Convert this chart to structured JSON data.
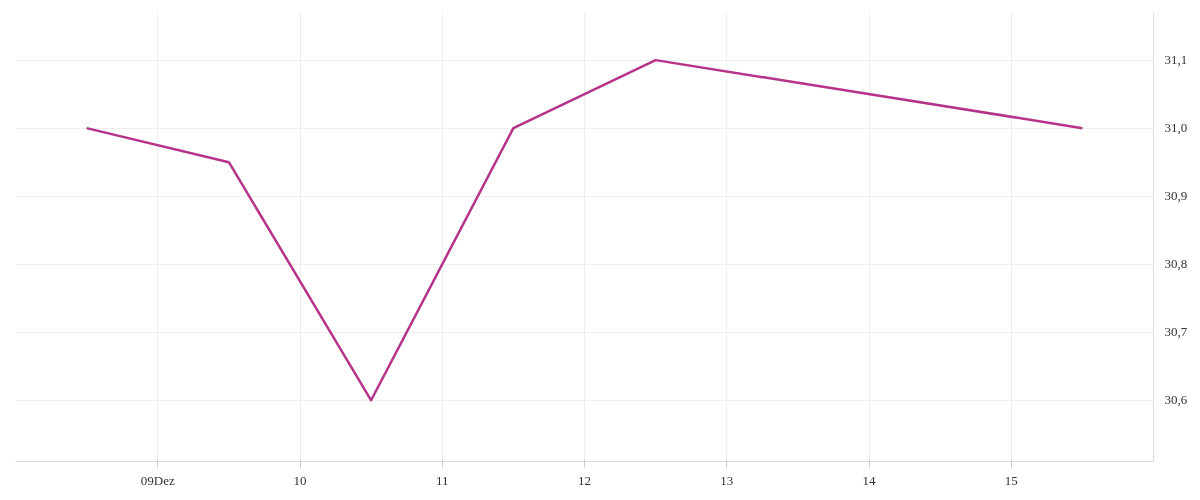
{
  "chart_data": {
    "type": "line",
    "x": [
      8.5,
      9.5,
      10.5,
      11.5,
      12.5,
      15.5
    ],
    "series": [
      {
        "color": "#b5338a",
        "values": [
          31.0,
          30.95,
          30.6,
          31.0,
          31.1,
          31.0
        ]
      }
    ],
    "xlim": [
      8.0,
      16.0
    ],
    "xticks": [
      {
        "value": 9,
        "label": "09Dez"
      },
      {
        "value": 10,
        "label": "10"
      },
      {
        "value": 11,
        "label": "11"
      },
      {
        "value": 12,
        "label": "12"
      },
      {
        "value": 13,
        "label": "13"
      },
      {
        "value": 14,
        "label": "14"
      },
      {
        "value": 15,
        "label": "15"
      }
    ],
    "ylim": [
      30.51,
      31.17
    ],
    "yticks": [
      {
        "value": 30.6,
        "label": "30,6"
      },
      {
        "value": 30.7,
        "label": "30,7"
      },
      {
        "value": 30.8,
        "label": "30,8"
      },
      {
        "value": 30.9,
        "label": "30,9"
      },
      {
        "value": 31.0,
        "label": "31,0"
      },
      {
        "value": 31.1,
        "label": "31,1"
      }
    ],
    "grid": true,
    "marker": "none",
    "line_style": "solid"
  }
}
